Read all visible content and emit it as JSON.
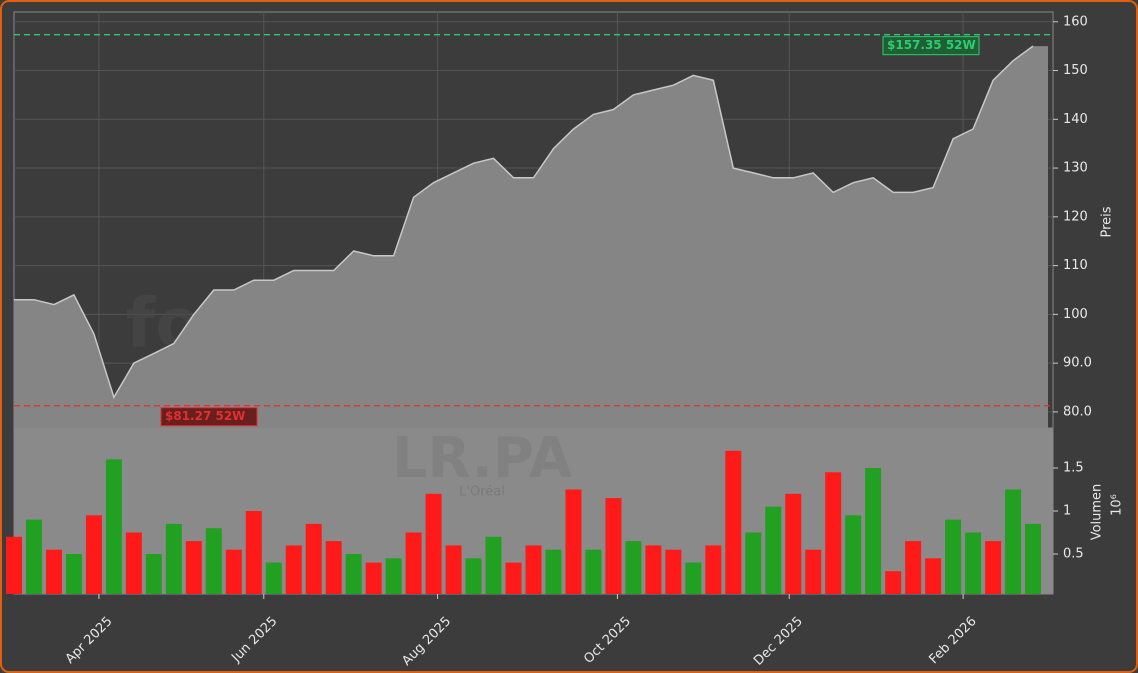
{
  "chart_data": {
    "type": "stock",
    "watermark": "forexsignale.trade",
    "ticker": "LR.PA",
    "company": "L'Oréal",
    "x": [
      0,
      1,
      2,
      3,
      4,
      5,
      6,
      7,
      8,
      9,
      10,
      11,
      12,
      13,
      14,
      15,
      16,
      17,
      18,
      19,
      20,
      21,
      22,
      23,
      24,
      25,
      26,
      27,
      28,
      29,
      30,
      31,
      32,
      33,
      34,
      35,
      36,
      37,
      38,
      39,
      40,
      41,
      42,
      43,
      44,
      45,
      46,
      47,
      48,
      49,
      50,
      51
    ],
    "xlim": [
      0,
      52
    ],
    "xticks": [
      {
        "value": 4.25,
        "label": "Apr 2025"
      },
      {
        "value": 12.5,
        "label": "Jun 2025"
      },
      {
        "value": 21.2,
        "label": "Aug 2025"
      },
      {
        "value": 30.2,
        "label": "Oct 2025"
      },
      {
        "value": 38.8,
        "label": "Dec 2025"
      },
      {
        "value": 47.5,
        "label": "Feb 2026"
      }
    ],
    "price": {
      "axis_label": "Preis",
      "color": "#c8c8c8",
      "fill": "#858585",
      "values": [
        103,
        103,
        102,
        104,
        96,
        83,
        90,
        92,
        94,
        100,
        105,
        105,
        107,
        107,
        109,
        109,
        109,
        113,
        112,
        112,
        124,
        127,
        129,
        131,
        132,
        128,
        128,
        134,
        138,
        141,
        142,
        145,
        146,
        147,
        149,
        148,
        130,
        129,
        128,
        128,
        129,
        125,
        127,
        128,
        125,
        125,
        126,
        136,
        138,
        148,
        152,
        155
      ],
      "ylim": [
        76.7,
        162
      ],
      "yticks": [
        {
          "value": 80,
          "label": "80.0"
        },
        {
          "value": 90,
          "label": "90.0"
        },
        100,
        110,
        120,
        130,
        140,
        150,
        160
      ]
    },
    "high": {
      "value": 157.35,
      "label": "$157.35 52W",
      "color": "#2ecc71"
    },
    "low": {
      "value": 81.27,
      "label": "$81.27 52W",
      "color": "#e03030"
    },
    "volume": {
      "axis_label": "Volumen",
      "offset_label": "10⁶",
      "values": [
        0.7,
        0.9,
        0.55,
        0.5,
        0.95,
        1.6,
        0.75,
        0.5,
        0.85,
        0.65,
        0.8,
        0.55,
        1.0,
        0.4,
        0.6,
        0.85,
        0.65,
        0.5,
        0.4,
        0.45,
        0.75,
        1.2,
        0.6,
        0.45,
        0.7,
        0.4,
        0.6,
        0.55,
        1.25,
        0.55,
        1.15,
        0.65,
        0.6,
        0.55,
        0.4,
        0.6,
        1.7,
        0.75,
        1.05,
        1.2,
        0.55,
        1.45,
        0.95,
        1.5,
        0.3,
        0.65,
        0.45,
        0.9,
        0.75,
        0.65,
        1.25,
        0.85
      ],
      "colors": [
        "#ff1a1a",
        "#22a022",
        "#ff1a1a",
        "#22a022",
        "#ff1a1a",
        "#22a022",
        "#ff1a1a",
        "#22a022",
        "#22a022",
        "#ff1a1a",
        "#22a022",
        "#ff1a1a",
        "#ff1a1a",
        "#22a022",
        "#ff1a1a",
        "#ff1a1a",
        "#ff1a1a",
        "#22a022",
        "#ff1a1a",
        "#22a022",
        "#ff1a1a",
        "#ff1a1a",
        "#ff1a1a",
        "#22a022",
        "#22a022",
        "#ff1a1a",
        "#ff1a1a",
        "#22a022",
        "#ff1a1a",
        "#22a022",
        "#ff1a1a",
        "#22a022",
        "#ff1a1a",
        "#ff1a1a",
        "#22a022",
        "#ff1a1a",
        "#ff1a1a",
        "#22a022",
        "#22a022",
        "#ff1a1a",
        "#ff1a1a",
        "#ff1a1a",
        "#22a022",
        "#22a022",
        "#ff1a1a",
        "#ff1a1a",
        "#ff1a1a",
        "#22a022",
        "#22a022",
        "#ff1a1a",
        "#22a022",
        "#22a022"
      ],
      "ylim": [
        0.035,
        1.965
      ],
      "yticks": [
        0.5,
        1.0,
        1.5
      ]
    }
  }
}
